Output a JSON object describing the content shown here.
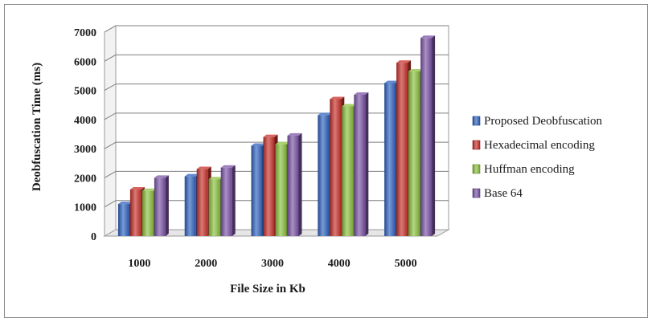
{
  "chart_data": {
    "type": "bar",
    "title": "",
    "xlabel": "File Size in Kb",
    "ylabel": "Deobfuscation Time (ms)",
    "categories": [
      "1000",
      "2000",
      "3000",
      "4000",
      "5000"
    ],
    "ylim": [
      0,
      7000
    ],
    "yticks": [
      0,
      1000,
      2000,
      3000,
      4000,
      5000,
      6000,
      7000
    ],
    "grid": true,
    "legend_position": "right",
    "series": [
      {
        "name": "Proposed Deobfuscation",
        "color": "#2f63c0",
        "values": [
          1100,
          2050,
          3100,
          4150,
          5250
        ]
      },
      {
        "name": "Hexadecimal encoding",
        "color": "#c8312a",
        "values": [
          1600,
          2300,
          3400,
          4700,
          5950
        ]
      },
      {
        "name": "Huffman encoding",
        "color": "#8cc13f",
        "values": [
          1550,
          1950,
          3150,
          4450,
          5650
        ]
      },
      {
        "name": "Base 64",
        "color": "#7b54a6",
        "values": [
          2000,
          2350,
          3450,
          4850,
          6800
        ]
      }
    ]
  }
}
